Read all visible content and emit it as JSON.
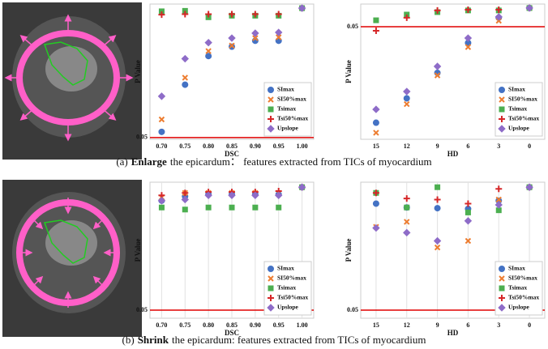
{
  "chart_data": [
    {
      "type": "scatter",
      "xlabel": "DSC",
      "ylabel": "P Value",
      "log_y": true,
      "ylim": [
        0.048,
        1.1
      ],
      "yticks": [
        0.05
      ],
      "ytick_line_color": "#e00000",
      "xgrid": false,
      "legend": "lower right",
      "categories": [
        "0.70",
        "0.75",
        "0.80",
        "0.85",
        "0.90",
        "0.95",
        "1.00"
      ],
      "series": [
        {
          "name": "SImax",
          "color": "#4472c4",
          "marker": "circle",
          "values": [
            0.057,
            0.17,
            0.33,
            0.41,
            0.47,
            0.47,
            1.0
          ]
        },
        {
          "name": "SI50%max",
          "color": "#ed7d31",
          "marker": "x",
          "values": [
            0.076,
            0.2,
            0.37,
            0.42,
            0.5,
            0.51,
            1.0
          ]
        },
        {
          "name": "Tsimax",
          "color": "#4caf50",
          "marker": "square",
          "values": [
            0.93,
            0.94,
            0.81,
            0.84,
            0.84,
            0.84,
            1.0
          ]
        },
        {
          "name": "Tsi50%max",
          "color": "#d62728",
          "marker": "plus",
          "values": [
            0.86,
            0.87,
            0.87,
            0.87,
            0.87,
            0.87,
            1.0
          ]
        },
        {
          "name": "Upslope",
          "color": "#8e6cc8",
          "marker": "diamond",
          "values": [
            0.13,
            0.31,
            0.45,
            0.5,
            0.56,
            0.57,
            1.0
          ]
        }
      ]
    },
    {
      "type": "scatter",
      "xlabel": "HD",
      "ylabel": "P Value",
      "log_y": true,
      "ylim": [
        7e-10,
        1.9
      ],
      "yticks": [
        0.05
      ],
      "ytick_line_color": "#e00000",
      "xgrid": false,
      "legend": "lower right",
      "categories": [
        "15",
        "12",
        "9",
        "6",
        "3",
        "0"
      ],
      "series": [
        {
          "name": "SImax",
          "color": "#4472c4",
          "marker": "circle",
          "values": [
            1e-08,
            5e-07,
            3e-05,
            0.0037,
            0.21,
            1.0
          ]
        },
        {
          "name": "SI50%max",
          "color": "#ed7d31",
          "marker": "x",
          "values": [
            2e-09,
            2e-07,
            2e-05,
            0.0019,
            0.13,
            1.0
          ]
        },
        {
          "name": "Tsimax",
          "color": "#4caf50",
          "marker": "square",
          "values": [
            0.14,
            0.35,
            0.52,
            0.68,
            0.68,
            1.0
          ]
        },
        {
          "name": "Tsi50%max",
          "color": "#d62728",
          "marker": "plus",
          "values": [
            0.026,
            0.21,
            0.68,
            0.77,
            0.77,
            1.0
          ]
        },
        {
          "name": "Upslope",
          "color": "#8e6cc8",
          "marker": "diamond",
          "values": [
            8.5e-08,
            1.5e-06,
            8.5e-05,
            0.008,
            0.24,
            1.0
          ]
        }
      ]
    },
    {
      "type": "scatter",
      "xlabel": "DSC",
      "ylabel": "P Value",
      "log_y": true,
      "ylim": [
        0.041,
        1.13
      ],
      "yticks": [
        0.05
      ],
      "ytick_line_color": "#e00000",
      "xgrid": true,
      "legend": "lower right",
      "categories": [
        "0.70",
        "0.75",
        "0.80",
        "0.85",
        "0.90",
        "0.95",
        "1.00"
      ],
      "series": [
        {
          "name": "SImax",
          "color": "#4472c4",
          "marker": "circle",
          "values": [
            0.72,
            0.8,
            0.84,
            0.84,
            0.84,
            0.84,
            1.0
          ]
        },
        {
          "name": "SI50%max",
          "color": "#ed7d31",
          "marker": "x",
          "values": [
            0.78,
            0.87,
            0.87,
            0.87,
            0.87,
            0.87,
            1.0
          ]
        },
        {
          "name": "Tsimax",
          "color": "#4caf50",
          "marker": "square",
          "values": [
            0.61,
            0.58,
            0.61,
            0.61,
            0.61,
            0.61,
            1.0
          ]
        },
        {
          "name": "Tsi50%max",
          "color": "#d62728",
          "marker": "plus",
          "values": [
            0.82,
            0.87,
            0.89,
            0.89,
            0.89,
            0.91,
            1.0
          ]
        },
        {
          "name": "Upslope",
          "color": "#8e6cc8",
          "marker": "diamond",
          "values": [
            0.72,
            0.74,
            0.82,
            0.82,
            0.82,
            0.82,
            1.0
          ]
        }
      ]
    },
    {
      "type": "scatter",
      "xlabel": "HD",
      "ylabel": "P Value",
      "log_y": true,
      "ylim": [
        0.041,
        1.13
      ],
      "yticks": [
        0.05
      ],
      "ytick_line_color": "#e00000",
      "xgrid": true,
      "legend": "lower right",
      "categories": [
        "15",
        "12",
        "9",
        "6",
        "3",
        "0"
      ],
      "series": [
        {
          "name": "SImax",
          "color": "#4472c4",
          "marker": "circle",
          "values": [
            0.67,
            0.61,
            0.6,
            0.59,
            0.72,
            1.0
          ]
        },
        {
          "name": "SI50%max",
          "color": "#ed7d31",
          "marker": "x",
          "values": [
            0.38,
            0.43,
            0.23,
            0.27,
            0.74,
            1.0
          ]
        },
        {
          "name": "Tsimax",
          "color": "#4caf50",
          "marker": "square",
          "values": [
            0.87,
            0.61,
            1.0,
            0.54,
            0.57,
            1.0
          ]
        },
        {
          "name": "Tsi50%max",
          "color": "#d62728",
          "marker": "plus",
          "values": [
            0.87,
            0.76,
            0.74,
            0.67,
            0.96,
            1.0
          ]
        },
        {
          "name": "Upslope",
          "color": "#8e6cc8",
          "marker": "diamond",
          "values": [
            0.37,
            0.33,
            0.27,
            0.44,
            0.65,
            1.0
          ]
        }
      ]
    }
  ],
  "captions": [
    {
      "label": "(a)",
      "emphasis": "Enlarge",
      "text": "the epicardum： features extracted from TICs of myocardium"
    },
    {
      "label": "(b)",
      "emphasis": "Shrink",
      "text": "the epicardum: features extracted from TICs of myocardium"
    }
  ]
}
